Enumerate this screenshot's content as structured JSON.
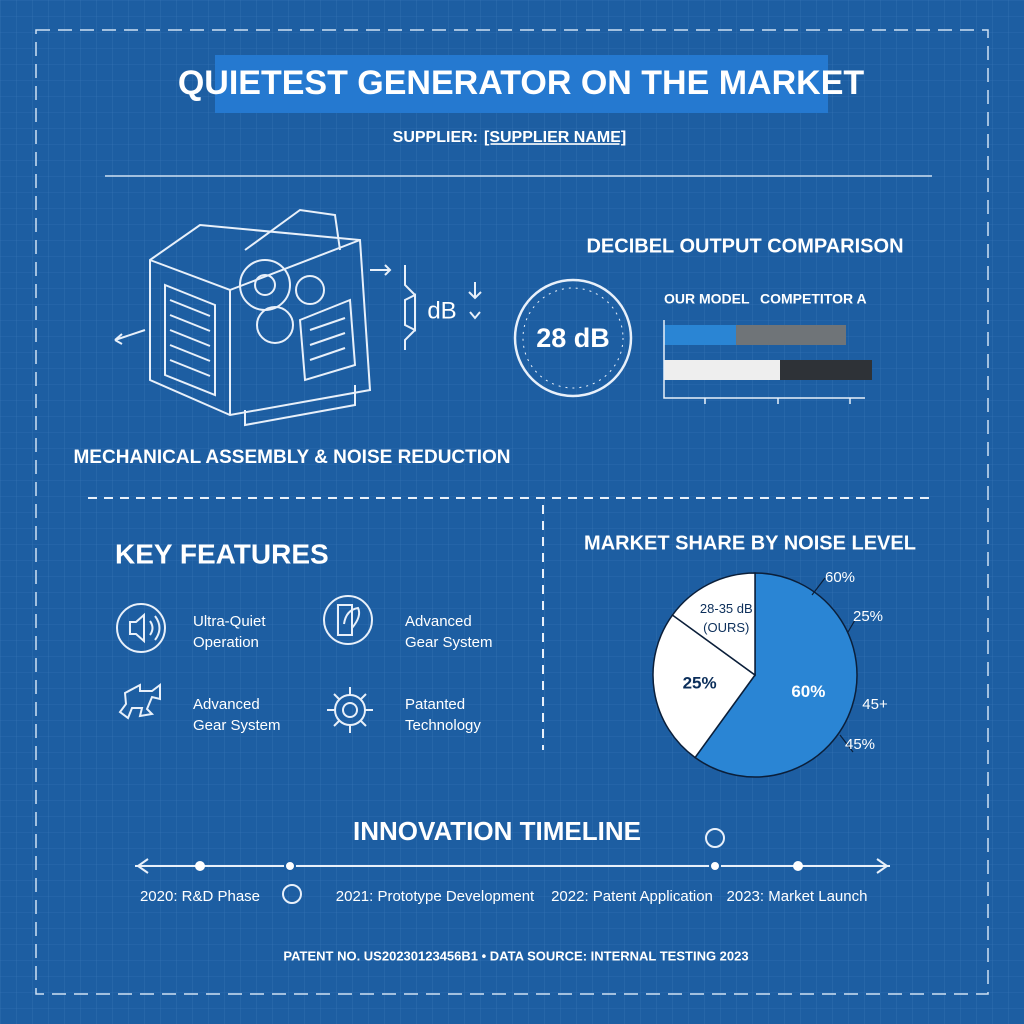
{
  "header": {
    "title": "QUIETEST GENERATOR ON THE MARKET",
    "supplier_label": "SUPPLIER:",
    "supplier_name": "[SUPPLIER NAME]"
  },
  "illustration": {
    "caption": "MECHANICAL ASSEMBLY & NOISE REDUCTION",
    "icon_label": "dB"
  },
  "decibel_comparison": {
    "title": "DECIBEL OUTPUT COMPARISON",
    "gauge_label": "28 dB",
    "legend": [
      "OUR MODEL",
      "COMPETITOR A"
    ]
  },
  "features": {
    "title": "KEY FEATURES",
    "items": [
      {
        "lines": [
          "Ultra-Quiet",
          "Operation"
        ]
      },
      {
        "lines": [
          "Advanced",
          "Gear System"
        ]
      },
      {
        "lines": [
          "Advanced",
          "Gear System"
        ]
      },
      {
        "lines": [
          "Patanted",
          "Technology"
        ]
      }
    ]
  },
  "market_share": {
    "title": "MARKET SHARE BY NOISE LEVEL",
    "slices": [
      {
        "value": 60,
        "label": "60%",
        "color": "#2a85d4"
      },
      {
        "value": 25,
        "label": "25%",
        "color": "#ffffff"
      }
    ],
    "remainder_label": [
      "28-35 dB",
      "(OURS)"
    ],
    "outer_labels": [
      "60%",
      "25%",
      "45+",
      "45%"
    ]
  },
  "timeline": {
    "title": "INNOVATION TIMELINE",
    "events": [
      "2020: R&D Phase",
      "2021: Prototype Development",
      "2022: Patent Application",
      "2023: Market Launch"
    ]
  },
  "footer": "PATENT NO. US20230123456B1 • DATA SOURCE: INTERNAL TESTING 2023"
}
